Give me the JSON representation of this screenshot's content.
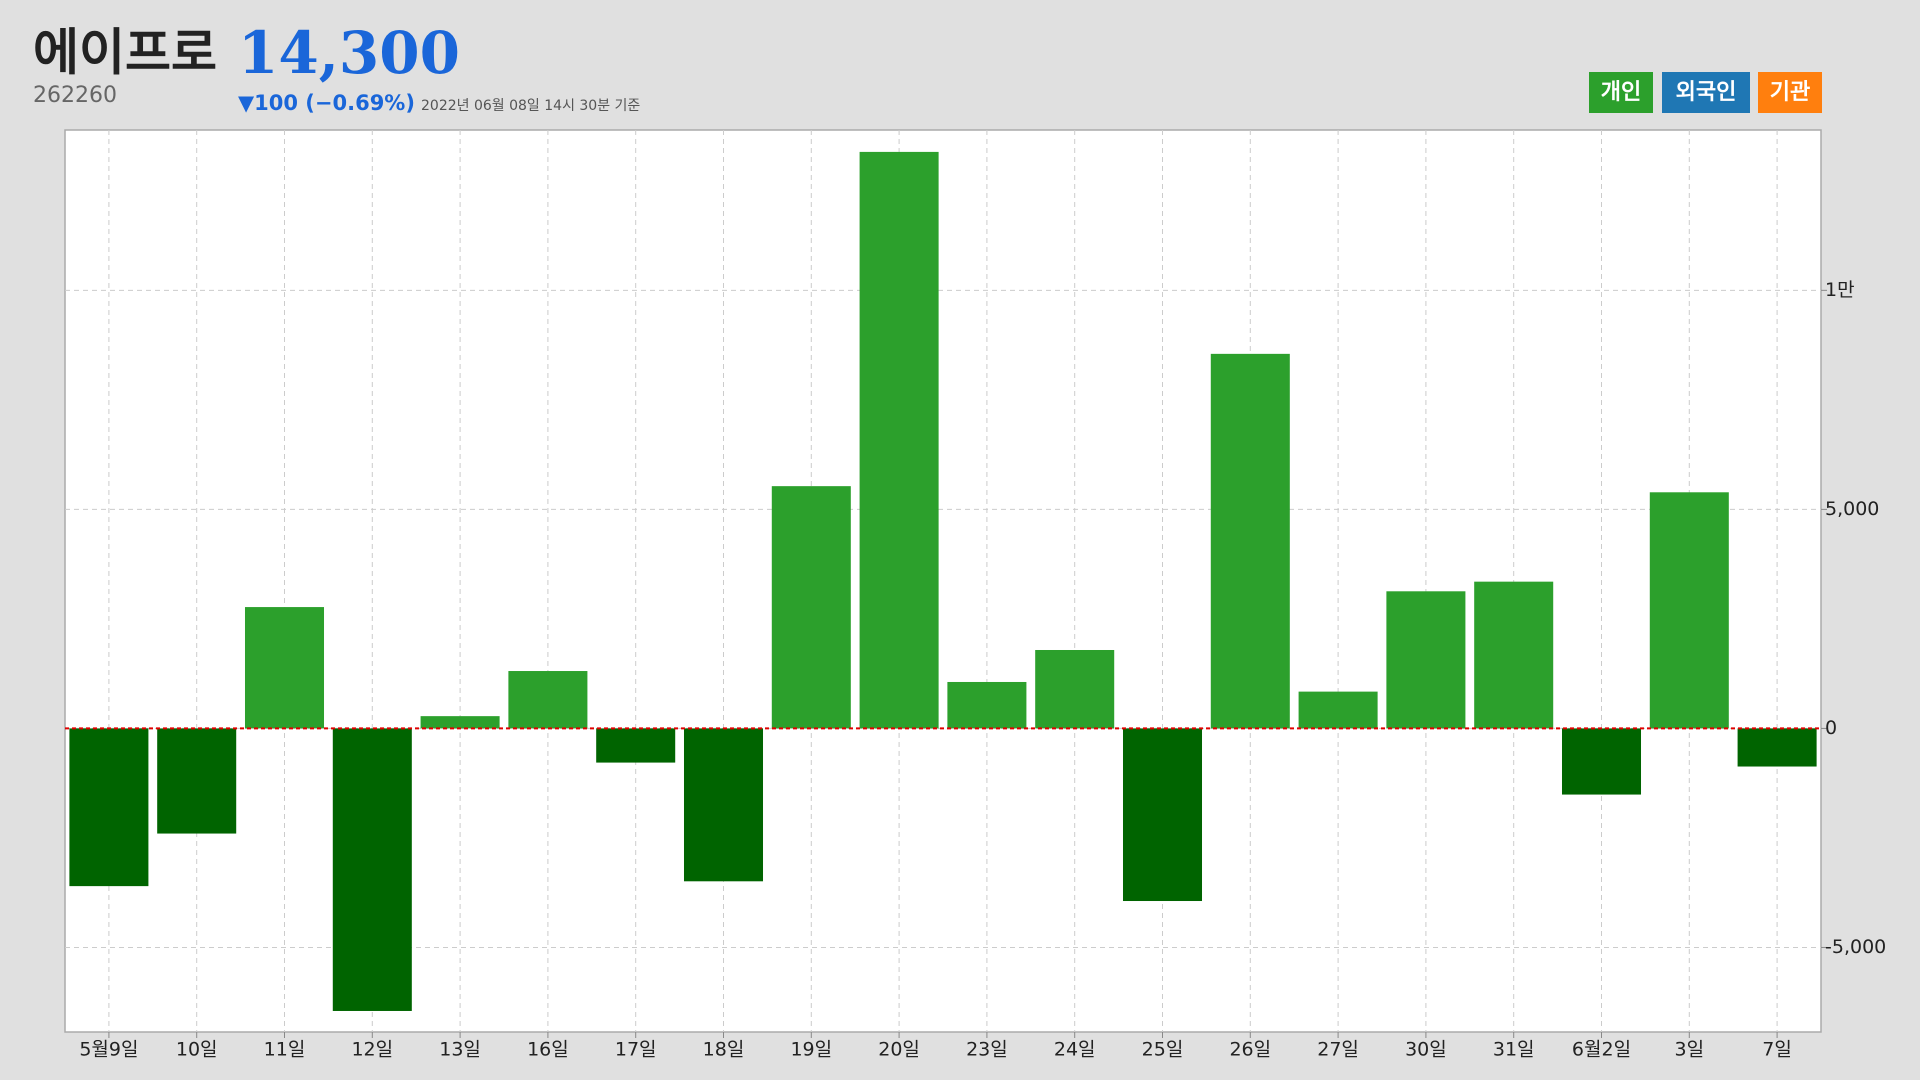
{
  "header": {
    "name": "에이프로",
    "price": "14,300",
    "code": "262260",
    "change": "▼100 (−0.69%)",
    "timestamp": "2022년 06월 08일 14시 30분 기준"
  },
  "toggles": [
    {
      "label": "개인",
      "color": "#2ca02c"
    },
    {
      "label": "외국인",
      "color": "#1f77b4"
    },
    {
      "label": "기관",
      "color": "#ff7f0e"
    }
  ],
  "chart_data": {
    "type": "bar",
    "categories": [
      "5월9일",
      "10일",
      "11일",
      "12일",
      "13일",
      "16일",
      "17일",
      "18일",
      "19일",
      "20일",
      "23일",
      "24일",
      "25일",
      "26일",
      "27일",
      "30일",
      "31일",
      "6월2일",
      "3일",
      "7일"
    ],
    "series": [
      {
        "name": "개인",
        "color": "#2ca02c",
        "negative_color": "#006400",
        "values": [
          -3600,
          -2400,
          2770,
          -6450,
          280,
          1310,
          -780,
          -3490,
          5530,
          13160,
          1060,
          1790,
          -3940,
          8550,
          840,
          3130,
          3350,
          -1510,
          5390,
          -870
        ]
      }
    ],
    "ylim": [
      -6930,
      13660
    ],
    "yticks": [
      {
        "value": -5000,
        "label": "-5,000"
      },
      0,
      {
        "value": 5000,
        "label": "5,000"
      },
      {
        "value": 10000,
        "label": "1만"
      }
    ],
    "grid": true,
    "baseline_color": "#e00000"
  }
}
